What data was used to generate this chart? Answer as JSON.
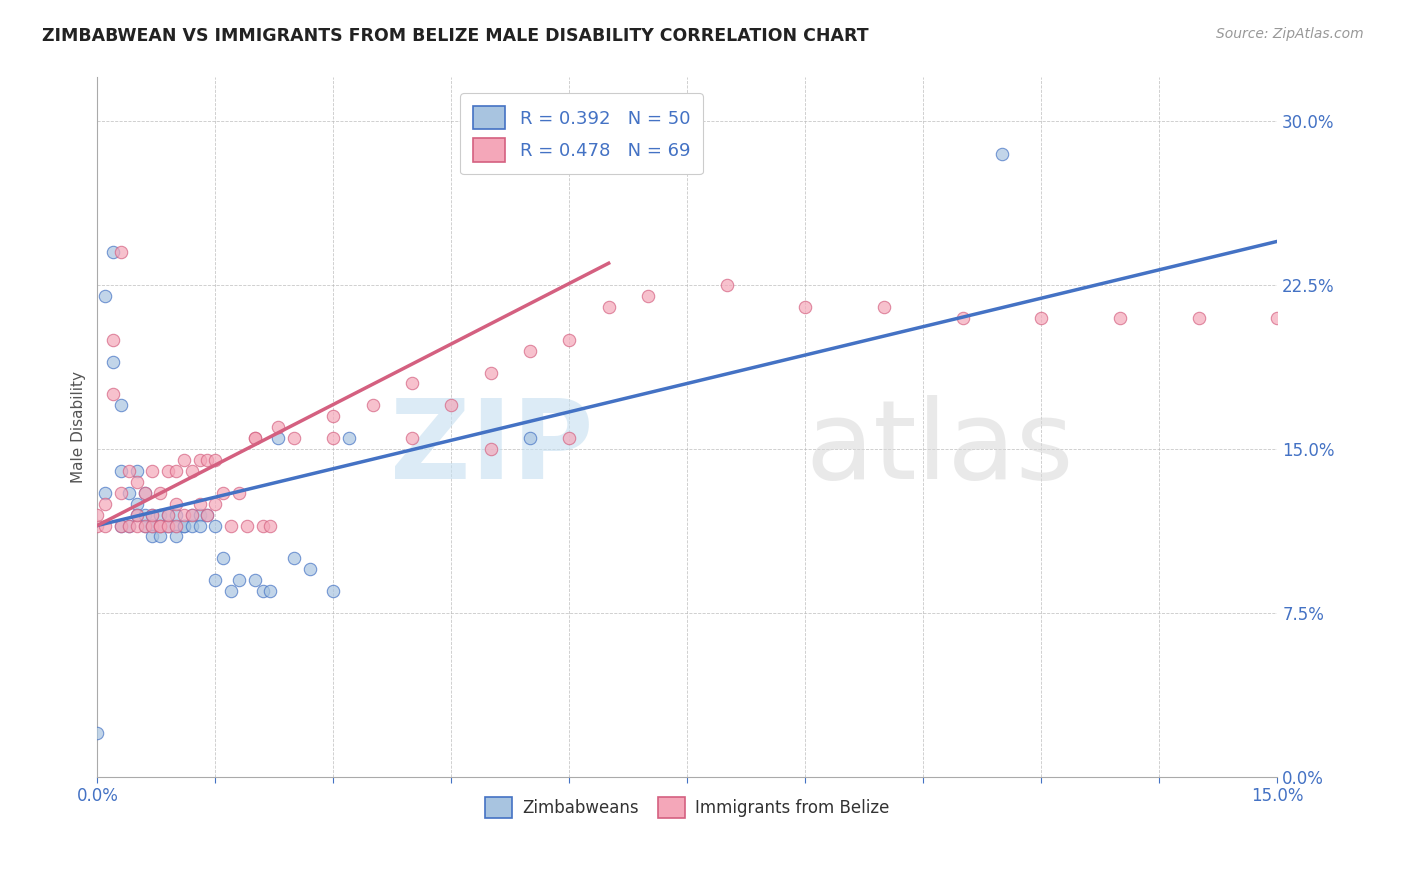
{
  "title": "ZIMBABWEAN VS IMMIGRANTS FROM BELIZE MALE DISABILITY CORRELATION CHART",
  "source": "Source: ZipAtlas.com",
  "ylabel_label": "Male Disability",
  "xlim": [
    0.0,
    0.15
  ],
  "ylim": [
    0.0,
    0.32
  ],
  "ytick_positions": [
    0.0,
    0.075,
    0.15,
    0.225,
    0.3
  ],
  "ytick_labels": [
    "0.0%",
    "7.5%",
    "15.0%",
    "22.5%",
    "30.0%"
  ],
  "xtick_positions": [
    0.0,
    0.015,
    0.03,
    0.045,
    0.06,
    0.075,
    0.09,
    0.105,
    0.12,
    0.135,
    0.15
  ],
  "xtick_labels": [
    "0.0%",
    "",
    "",
    "",
    "",
    "",
    "",
    "",
    "",
    "",
    "15.0%"
  ],
  "legend_r1": "R = 0.392",
  "legend_n1": "N = 50",
  "legend_r2": "R = 0.478",
  "legend_n2": "N = 69",
  "color_blue": "#a8c4e0",
  "color_pink": "#f4a7b9",
  "line_blue": "#4472c4",
  "line_pink": "#d46080",
  "blue_line_x0": 0.0,
  "blue_line_y0": 0.115,
  "blue_line_x1": 0.15,
  "blue_line_y1": 0.245,
  "pink_line_x0": 0.0,
  "pink_line_y0": 0.115,
  "pink_line_x1": 0.065,
  "pink_line_y1": 0.235,
  "blue_scatter_x": [
    0.001,
    0.001,
    0.002,
    0.002,
    0.003,
    0.003,
    0.003,
    0.004,
    0.004,
    0.005,
    0.005,
    0.005,
    0.006,
    0.006,
    0.006,
    0.007,
    0.007,
    0.007,
    0.007,
    0.008,
    0.008,
    0.008,
    0.009,
    0.009,
    0.01,
    0.01,
    0.01,
    0.011,
    0.011,
    0.012,
    0.012,
    0.013,
    0.013,
    0.014,
    0.015,
    0.015,
    0.016,
    0.017,
    0.018,
    0.02,
    0.021,
    0.022,
    0.023,
    0.025,
    0.027,
    0.03,
    0.032,
    0.055,
    0.115,
    0.0
  ],
  "blue_scatter_y": [
    0.13,
    0.22,
    0.19,
    0.24,
    0.14,
    0.17,
    0.115,
    0.13,
    0.115,
    0.125,
    0.14,
    0.12,
    0.115,
    0.13,
    0.12,
    0.115,
    0.12,
    0.115,
    0.11,
    0.115,
    0.12,
    0.11,
    0.115,
    0.12,
    0.115,
    0.12,
    0.11,
    0.115,
    0.115,
    0.12,
    0.115,
    0.12,
    0.115,
    0.12,
    0.115,
    0.09,
    0.1,
    0.085,
    0.09,
    0.09,
    0.085,
    0.085,
    0.155,
    0.1,
    0.095,
    0.085,
    0.155,
    0.155,
    0.285,
    0.02
  ],
  "pink_scatter_x": [
    0.0,
    0.0,
    0.001,
    0.001,
    0.002,
    0.002,
    0.003,
    0.003,
    0.003,
    0.004,
    0.004,
    0.005,
    0.005,
    0.005,
    0.006,
    0.006,
    0.007,
    0.007,
    0.007,
    0.008,
    0.008,
    0.008,
    0.009,
    0.009,
    0.009,
    0.01,
    0.01,
    0.01,
    0.011,
    0.011,
    0.012,
    0.012,
    0.013,
    0.013,
    0.014,
    0.014,
    0.015,
    0.015,
    0.016,
    0.017,
    0.018,
    0.019,
    0.02,
    0.021,
    0.022,
    0.023,
    0.025,
    0.03,
    0.035,
    0.04,
    0.045,
    0.05,
    0.055,
    0.06,
    0.065,
    0.07,
    0.08,
    0.09,
    0.1,
    0.11,
    0.12,
    0.13,
    0.14,
    0.15,
    0.02,
    0.03,
    0.04,
    0.05,
    0.06
  ],
  "pink_scatter_y": [
    0.115,
    0.12,
    0.115,
    0.125,
    0.175,
    0.2,
    0.115,
    0.13,
    0.24,
    0.115,
    0.14,
    0.115,
    0.12,
    0.135,
    0.115,
    0.13,
    0.115,
    0.12,
    0.14,
    0.115,
    0.13,
    0.115,
    0.115,
    0.12,
    0.14,
    0.115,
    0.125,
    0.14,
    0.12,
    0.145,
    0.12,
    0.14,
    0.125,
    0.145,
    0.12,
    0.145,
    0.125,
    0.145,
    0.13,
    0.115,
    0.13,
    0.115,
    0.155,
    0.115,
    0.115,
    0.16,
    0.155,
    0.165,
    0.17,
    0.18,
    0.17,
    0.185,
    0.195,
    0.2,
    0.215,
    0.22,
    0.225,
    0.215,
    0.215,
    0.21,
    0.21,
    0.21,
    0.21,
    0.21,
    0.155,
    0.155,
    0.155,
    0.15,
    0.155
  ]
}
